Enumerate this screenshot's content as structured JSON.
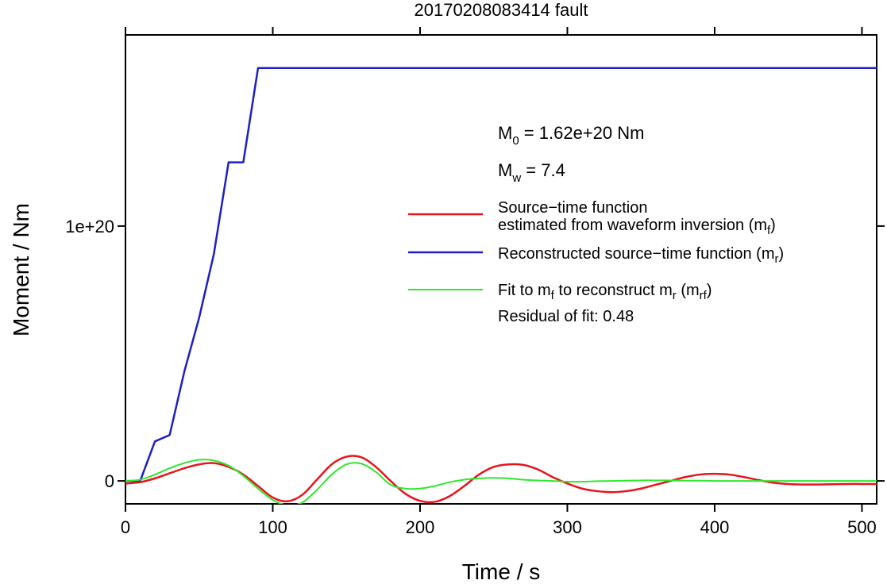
{
  "chart_data": {
    "type": "line",
    "title": "20170208083414 fault",
    "xlabel": "Time / s",
    "ylabel": "Moment / Nm",
    "xlim": [
      0,
      510
    ],
    "ylim": [
      -9e+18,
      1.75e+20
    ],
    "x_ticks": [
      {
        "value": 0,
        "label": "0"
      },
      {
        "value": 100,
        "label": "100"
      },
      {
        "value": 200,
        "label": "200"
      },
      {
        "value": 300,
        "label": "300"
      },
      {
        "value": 400,
        "label": "400"
      },
      {
        "value": 500,
        "label": "500"
      }
    ],
    "y_ticks": [
      {
        "value": 0,
        "label": "0"
      },
      {
        "value": 1e+20,
        "label": "1e+20"
      }
    ],
    "grid": false,
    "legend_position": "right",
    "annotations": {
      "m0_main": "M",
      "m0_sub": "0",
      "m0_rest": " = 1.62e+20 Nm",
      "mw_main": "M",
      "mw_sub": "w",
      "mw_rest": " = 7.4",
      "residual": "Residual of fit: 0.48"
    },
    "series": [
      {
        "name_line1": "Source−time function",
        "name_line2_main": "estimated from waveform inversion (m",
        "name_line2_sub": "f",
        "name_line2_end": ")",
        "color": "#e8141c",
        "x": [
          0,
          10,
          20,
          30,
          40,
          50,
          60,
          70,
          80,
          90,
          100,
          110,
          120,
          130,
          140,
          150,
          160,
          170,
          180,
          190,
          200,
          210,
          220,
          230,
          240,
          250,
          260,
          270,
          280,
          290,
          300,
          310,
          320,
          330,
          340,
          350,
          360,
          370,
          380,
          390,
          400,
          410,
          420,
          430,
          440,
          450,
          460,
          470,
          480,
          490,
          500,
          510
        ],
        "y": [
          -1e+18,
          -5e+17,
          1e+18,
          3e+18,
          5e+18,
          6.5e+18,
          7e+18,
          5.5e+18,
          2.5e+18,
          -2e+18,
          -6.5e+18,
          -8e+18,
          -5.5e+18,
          5e+17,
          6.5e+18,
          9.5e+18,
          9.3e+18,
          5.5e+18,
          0,
          -5e+18,
          -7.8e+18,
          -8.2e+18,
          -6e+18,
          -2e+18,
          2.5e+18,
          5.5e+18,
          6.5e+18,
          6.3e+18,
          4.5e+18,
          1.5e+18,
          -1e+18,
          -3e+18,
          -4e+18,
          -4.4e+18,
          -4e+18,
          -3e+18,
          -1.5e+18,
          0,
          1.5e+18,
          2.5e+18,
          2.8e+18,
          2.5e+18,
          1.5e+18,
          3e+17,
          -7e+17,
          -1.2e+18,
          -1.4e+18,
          -1.4e+18,
          -1.3e+18,
          -1.2e+18,
          -1.2e+18,
          -1.2e+18
        ]
      },
      {
        "name_main": "Reconstructed source−time function (m",
        "name_sub": "r",
        "name_end": ")",
        "color": "#1e1ec8",
        "x": [
          0,
          10,
          20,
          30,
          40,
          50,
          60,
          70,
          80,
          90,
          510
        ],
        "y": [
          0,
          0,
          1.55e+19,
          1.8e+19,
          4.3e+19,
          6.4e+19,
          8.9e+19,
          1.25e+20,
          1.25e+20,
          1.62e+20,
          1.62e+20
        ]
      },
      {
        "name_main": "Fit to m",
        "name_sub1": "f",
        "name_mid": " to reconstruct m",
        "name_sub2": "r",
        "name_mid2": " (m",
        "name_sub3": "rf",
        "name_end": ")",
        "color": "#2ee82e",
        "x": [
          0,
          10,
          20,
          30,
          40,
          50,
          60,
          70,
          80,
          90,
          100,
          110,
          120,
          130,
          140,
          150,
          160,
          170,
          180,
          190,
          200,
          210,
          220,
          230,
          240,
          250,
          260,
          270,
          280,
          290,
          300,
          310,
          320,
          330,
          340,
          350,
          360,
          370,
          380,
          390,
          400,
          410,
          420,
          430,
          440,
          450,
          460,
          470,
          480,
          490,
          500,
          510
        ],
        "y": [
          0,
          5e+17,
          2.5e+18,
          5e+18,
          7e+18,
          8.3e+18,
          8e+18,
          6e+18,
          2e+18,
          -3e+18,
          -7.5e+18,
          -9.5e+18,
          -8.5e+18,
          -3.5e+18,
          2.5e+18,
          6.5e+18,
          6.8e+18,
          3.5e+18,
          -1.5e+18,
          -3e+18,
          -3e+18,
          -2e+18,
          -5e+17,
          5e+17,
          1e+18,
          1.2e+18,
          1e+18,
          5e+17,
          2e+17,
          0,
          -3e+17,
          -3e+17,
          -1e+17,
          0,
          1e+17,
          2e+17,
          2e+17,
          2e+17,
          1e+17,
          1e+17,
          0,
          0,
          0,
          0,
          0,
          0,
          0,
          0,
          0,
          0,
          0,
          0
        ]
      }
    ]
  }
}
